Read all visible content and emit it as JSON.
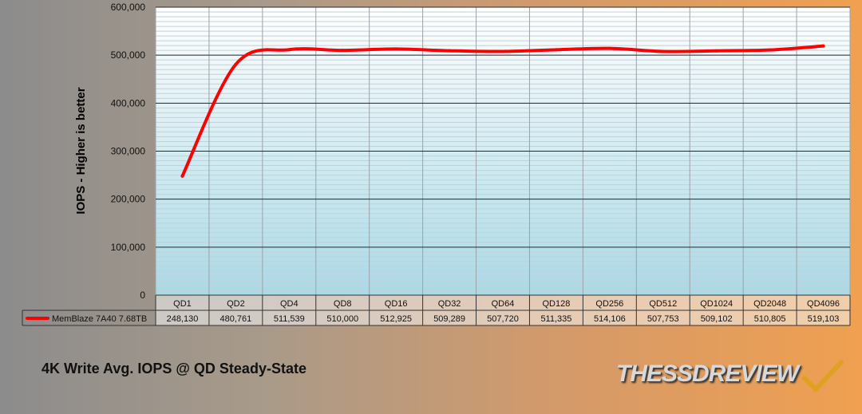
{
  "chart_data": {
    "type": "line",
    "title": "4K Write Avg. IOPS @ QD Steady-State",
    "ylabel": "IOPS - Higher is better",
    "ylim": [
      0,
      600000
    ],
    "yticks": [
      "0",
      "100,000",
      "200,000",
      "300,000",
      "400,000",
      "500,000",
      "600,000"
    ],
    "grid": true,
    "categories": [
      "QD1",
      "QD2",
      "QD4",
      "QD8",
      "QD16",
      "QD32",
      "QD64",
      "QD128",
      "QD256",
      "QD512",
      "QD1024",
      "QD2048",
      "QD4096"
    ],
    "series": [
      {
        "name": "MemBlaze 7A40 7.68TB",
        "color": "#ff0000",
        "values": [
          248130,
          480761,
          511539,
          510000,
          512925,
          509289,
          507720,
          511335,
          514106,
          507753,
          509102,
          510805,
          519103
        ],
        "labels": [
          "248,130",
          "480,761",
          "511,539",
          "510,000",
          "512,925",
          "509,289",
          "507,720",
          "511,335",
          "514,106",
          "507,753",
          "509,102",
          "510,805",
          "519,103"
        ]
      }
    ]
  },
  "branding": {
    "logo_text": "THESSDREVIEW"
  }
}
